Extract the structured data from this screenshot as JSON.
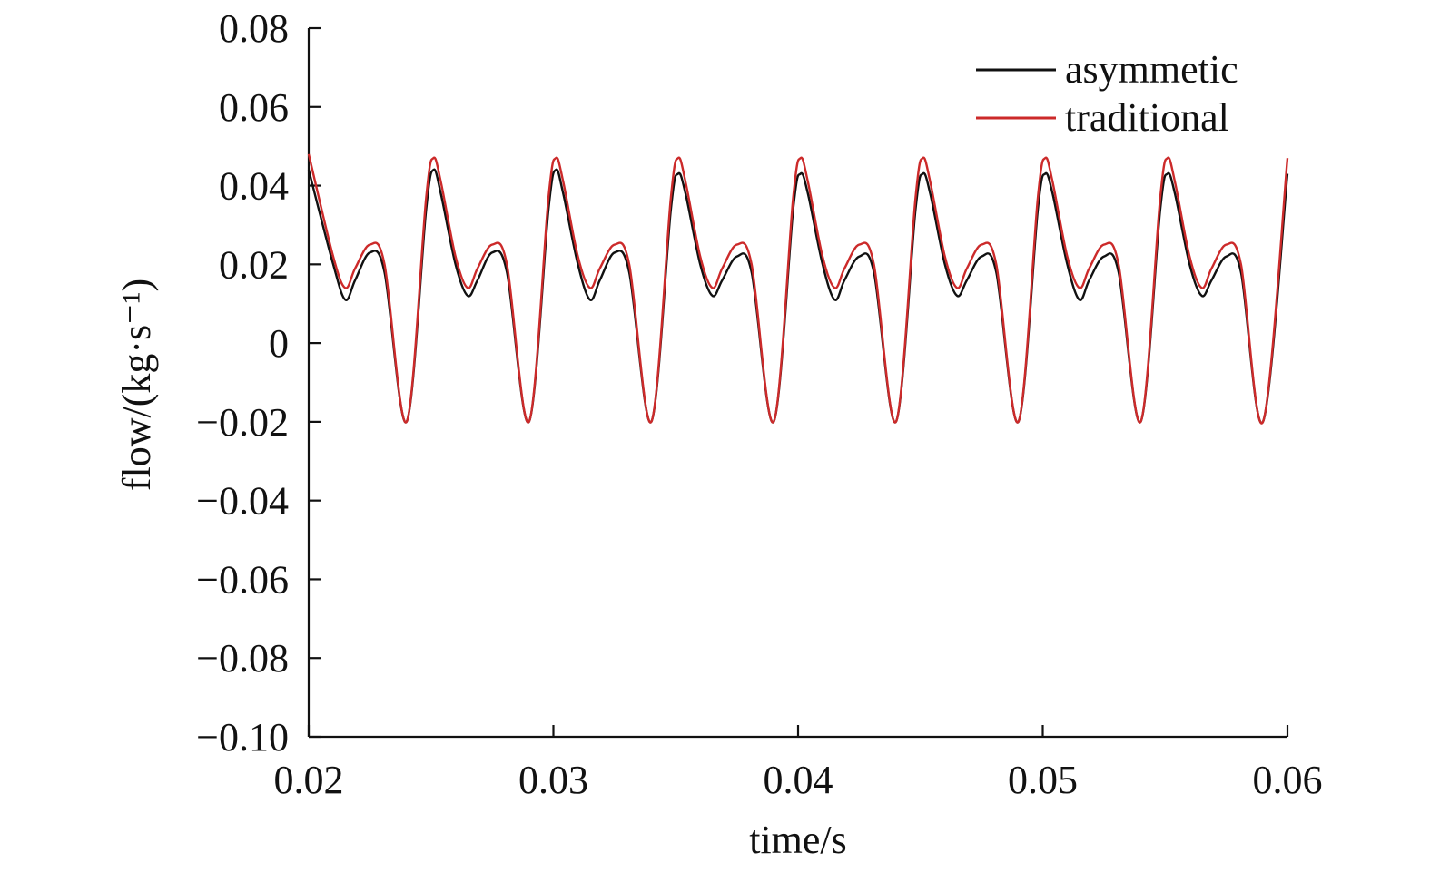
{
  "chart_data": {
    "type": "line",
    "title": "",
    "xlabel": "time/s",
    "ylabel": "flow/(kg·s⁻¹)",
    "xlim": [
      0.02,
      0.06
    ],
    "ylim": [
      -0.1,
      0.08
    ],
    "x_ticks": [
      0.02,
      0.03,
      0.04,
      0.05,
      0.06
    ],
    "x_tick_labels": [
      "0.02",
      "0.03",
      "0.04",
      "0.05",
      "0.06"
    ],
    "y_ticks": [
      0.08,
      0.06,
      0.04,
      0.02,
      0,
      -0.02,
      -0.04,
      -0.06,
      -0.08,
      -0.1
    ],
    "y_tick_labels": [
      "0.08",
      "0.06",
      "0.04",
      "0.02",
      "0",
      "−0.02",
      "−0.04",
      "−0.06",
      "−0.08",
      "−0.10"
    ],
    "grid": false,
    "legend_position": "top-right",
    "series": [
      {
        "name": "asymmetic",
        "color": "#111111",
        "x": [
          0.02,
          0.021,
          0.0215,
          0.0219,
          0.0225,
          0.0231,
          0.024,
          0.0248,
          0.0251,
          0.0254,
          0.026,
          0.0265,
          0.0269,
          0.0275,
          0.0281,
          0.029,
          0.0298,
          0.0301,
          0.0304,
          0.031,
          0.0315,
          0.0319,
          0.0325,
          0.0331,
          0.034,
          0.0348,
          0.0351,
          0.0354,
          0.036,
          0.0365,
          0.0369,
          0.0375,
          0.0381,
          0.039,
          0.0398,
          0.0401,
          0.0404,
          0.041,
          0.0415,
          0.0419,
          0.0425,
          0.0431,
          0.044,
          0.0448,
          0.0451,
          0.0454,
          0.046,
          0.0465,
          0.0469,
          0.0475,
          0.0481,
          0.049,
          0.0498,
          0.0501,
          0.0504,
          0.051,
          0.0515,
          0.0519,
          0.0525,
          0.0531,
          0.054,
          0.0548,
          0.0551,
          0.0554,
          0.056,
          0.0565,
          0.0569,
          0.0575,
          0.0581,
          0.059,
          0.06
        ],
        "values": [
          0.044,
          0.02,
          0.011,
          0.016,
          0.023,
          0.018,
          -0.02,
          0.034,
          0.044,
          0.038,
          0.02,
          0.012,
          0.016,
          0.023,
          0.018,
          -0.02,
          0.034,
          0.044,
          0.038,
          0.02,
          0.011,
          0.016,
          0.023,
          0.018,
          -0.02,
          0.034,
          0.043,
          0.038,
          0.02,
          0.012,
          0.016,
          0.022,
          0.018,
          -0.02,
          0.034,
          0.043,
          0.038,
          0.02,
          0.011,
          0.016,
          0.022,
          0.018,
          -0.02,
          0.034,
          0.043,
          0.038,
          0.02,
          0.012,
          0.016,
          0.022,
          0.018,
          -0.02,
          0.034,
          0.043,
          0.038,
          0.02,
          0.011,
          0.016,
          0.022,
          0.018,
          -0.02,
          0.034,
          0.043,
          0.038,
          0.02,
          0.012,
          0.016,
          0.022,
          0.018,
          -0.02,
          0.043
        ]
      },
      {
        "name": "traditional",
        "color": "#cc2a2a",
        "x": [
          0.02,
          0.021,
          0.0215,
          0.0219,
          0.0225,
          0.0231,
          0.024,
          0.0248,
          0.0251,
          0.0254,
          0.026,
          0.0265,
          0.0269,
          0.0275,
          0.0281,
          0.029,
          0.0298,
          0.0301,
          0.0304,
          0.031,
          0.0315,
          0.0319,
          0.0325,
          0.0331,
          0.034,
          0.0348,
          0.0351,
          0.0354,
          0.036,
          0.0365,
          0.0369,
          0.0375,
          0.0381,
          0.039,
          0.0398,
          0.0401,
          0.0404,
          0.041,
          0.0415,
          0.0419,
          0.0425,
          0.0431,
          0.044,
          0.0448,
          0.0451,
          0.0454,
          0.046,
          0.0465,
          0.0469,
          0.0475,
          0.0481,
          0.049,
          0.0498,
          0.0501,
          0.0504,
          0.051,
          0.0515,
          0.0519,
          0.0525,
          0.0531,
          0.054,
          0.0548,
          0.0551,
          0.0554,
          0.056,
          0.0565,
          0.0569,
          0.0575,
          0.0581,
          0.059,
          0.06
        ],
        "values": [
          0.048,
          0.022,
          0.014,
          0.019,
          0.025,
          0.02,
          -0.02,
          0.037,
          0.047,
          0.041,
          0.022,
          0.014,
          0.019,
          0.025,
          0.02,
          -0.02,
          0.037,
          0.047,
          0.041,
          0.022,
          0.014,
          0.019,
          0.025,
          0.02,
          -0.02,
          0.037,
          0.047,
          0.041,
          0.022,
          0.014,
          0.019,
          0.025,
          0.02,
          -0.02,
          0.037,
          0.047,
          0.041,
          0.022,
          0.014,
          0.019,
          0.025,
          0.02,
          -0.02,
          0.037,
          0.047,
          0.041,
          0.022,
          0.014,
          0.019,
          0.025,
          0.02,
          -0.02,
          0.037,
          0.047,
          0.041,
          0.022,
          0.014,
          0.019,
          0.025,
          0.02,
          -0.02,
          0.037,
          0.047,
          0.041,
          0.022,
          0.014,
          0.019,
          0.025,
          0.02,
          -0.02,
          0.047
        ]
      }
    ]
  }
}
